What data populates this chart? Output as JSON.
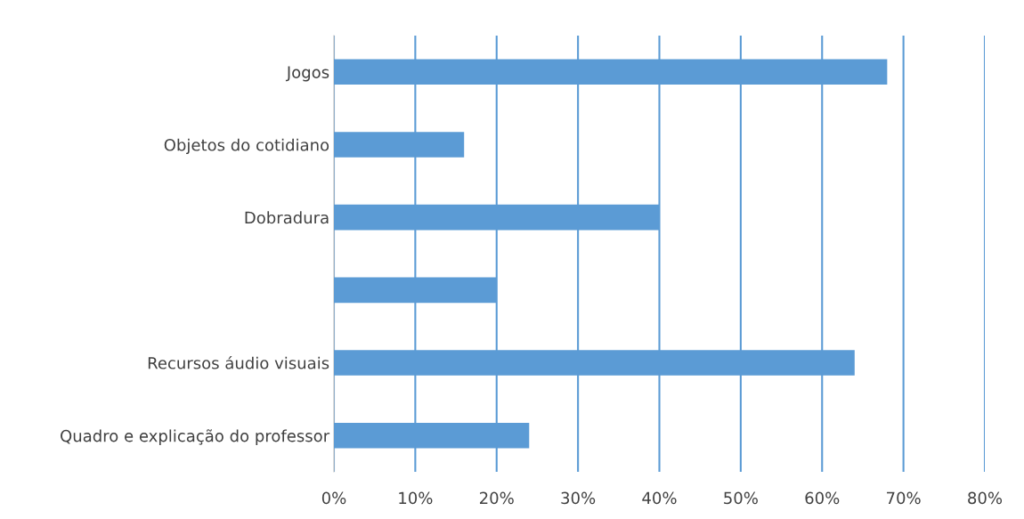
{
  "chart_data": {
    "type": "bar",
    "orientation": "horizontal",
    "categories": [
      "Jogos",
      "Objetos do cotidiano",
      "Dobradura",
      null,
      "Recursos áudio visuais",
      "Quadro e explicação do professor"
    ],
    "values": [
      68,
      16,
      40,
      20,
      64,
      24
    ],
    "color": "#5b9bd5",
    "xlim": [
      0,
      80
    ],
    "xticks": [
      {
        "value": 0,
        "label": "0%"
      },
      {
        "value": 10,
        "label": "10%"
      },
      {
        "value": 20,
        "label": "20%"
      },
      {
        "value": 30,
        "label": "30%"
      },
      {
        "value": 40,
        "label": "40%"
      },
      {
        "value": 50,
        "label": "50%"
      },
      {
        "value": 60,
        "label": "60%"
      },
      {
        "value": 70,
        "label": "70%"
      },
      {
        "value": 80,
        "label": "80%"
      }
    ],
    "grid": "x"
  }
}
